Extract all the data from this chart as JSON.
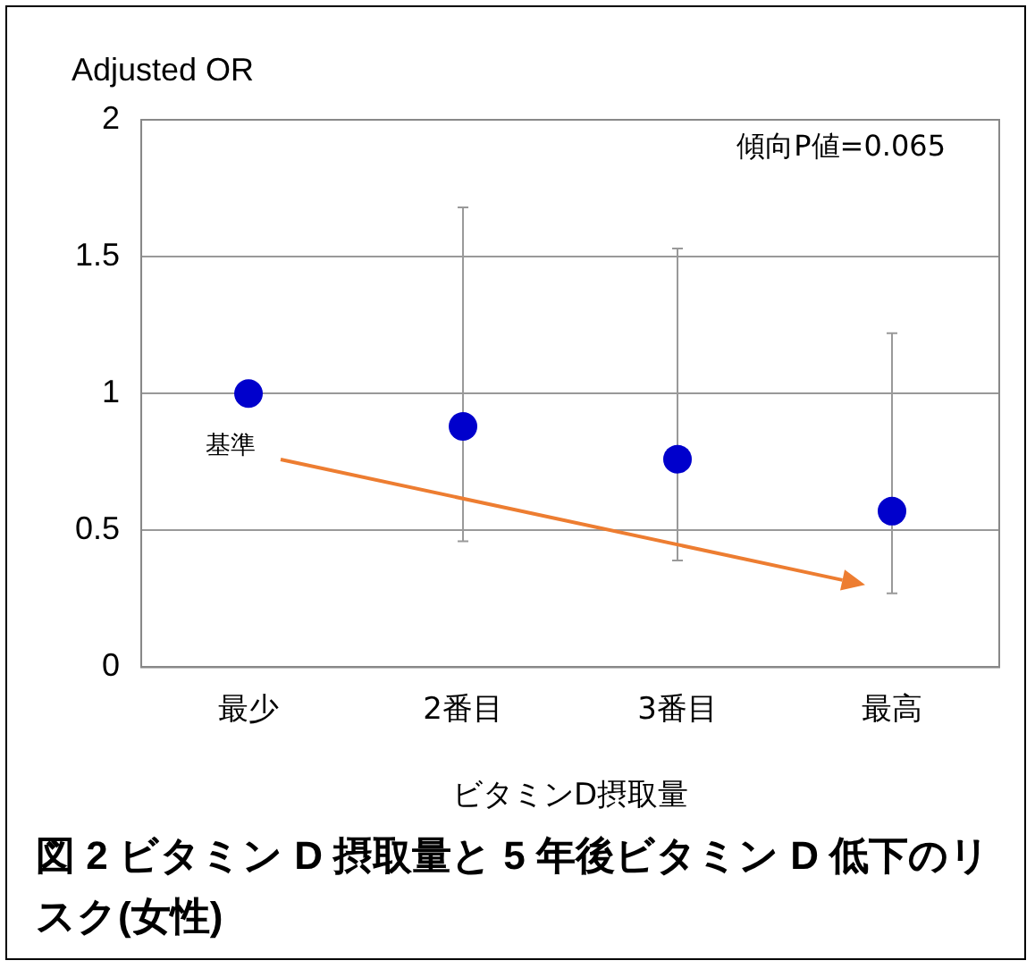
{
  "chart_data": {
    "type": "scatter",
    "title": "図 2 ビタミン D 摂取量と 5 年後ビタミン D 低下のリスク(女性)",
    "xlabel": "ビタミンD摂取量",
    "ylabel": "Adjusted OR",
    "categories": [
      "最少",
      "2番目",
      "3番目",
      "最高"
    ],
    "series": [
      {
        "color": "#0000cc",
        "values": [
          1.0,
          0.88,
          0.76,
          0.57
        ],
        "errors": [
          null,
          [
            0.46,
            1.68
          ],
          [
            0.39,
            1.53
          ],
          [
            0.27,
            1.22
          ]
        ]
      }
    ],
    "ylim": [
      0,
      2
    ],
    "yticks": [
      0,
      0.5,
      1,
      1.5,
      2
    ],
    "grid": "y",
    "marker": "circle",
    "legend": false,
    "annotations": [
      "傾向P値=0.065",
      "基準"
    ]
  }
}
